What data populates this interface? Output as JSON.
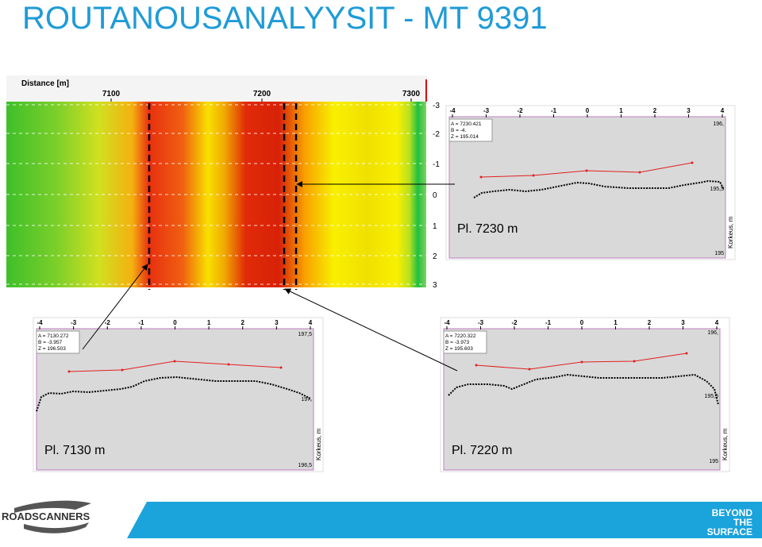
{
  "title": "ROUTANOUSANALYYSIT - MT 9391",
  "radar_panel": {
    "x_axis_label": "Distance [m]",
    "x_ticks": [
      "7100",
      "7200",
      "7300"
    ],
    "depth_ticks": [
      "-3",
      "-2",
      "-1",
      "0",
      "1",
      "2",
      "3"
    ]
  },
  "profiles": [
    {
      "caption": "Pl. 7230 m",
      "x_ticks": [
        "-4",
        "-3",
        "-2",
        "-1",
        "0",
        "1",
        "2",
        "3",
        "4"
      ],
      "info": [
        "A = 7230.421",
        "B = -4.",
        "Z = 195.014"
      ],
      "height_labels": [
        "196,",
        "195,5",
        "195"
      ],
      "axis_label": "Korkeus, m"
    },
    {
      "caption": "Pl. 7130 m",
      "x_ticks": [
        "-4",
        "-3",
        "-2",
        "-1",
        "0",
        "1",
        "2",
        "3",
        "4"
      ],
      "info": [
        "A = 7130.272",
        "B = -3.957",
        "Z = 196.503"
      ],
      "height_labels": [
        "197,5",
        "197,",
        "196,5"
      ],
      "axis_label": "Korkeus, m"
    },
    {
      "caption": "Pl. 7220 m",
      "x_ticks": [
        "-4",
        "-3",
        "-2",
        "-1",
        "0",
        "1",
        "2",
        "3",
        "4"
      ],
      "info": [
        "A = 7220.322",
        "B = -3.973",
        "Z = 195.603"
      ],
      "height_labels": [
        "196,",
        "195,5",
        "195"
      ],
      "axis_label": "Korkeus, m"
    }
  ],
  "footer": {
    "logo": "ROADSCANNERS",
    "tagline": [
      "BEYOND",
      "THE",
      "SURFACE"
    ]
  }
}
